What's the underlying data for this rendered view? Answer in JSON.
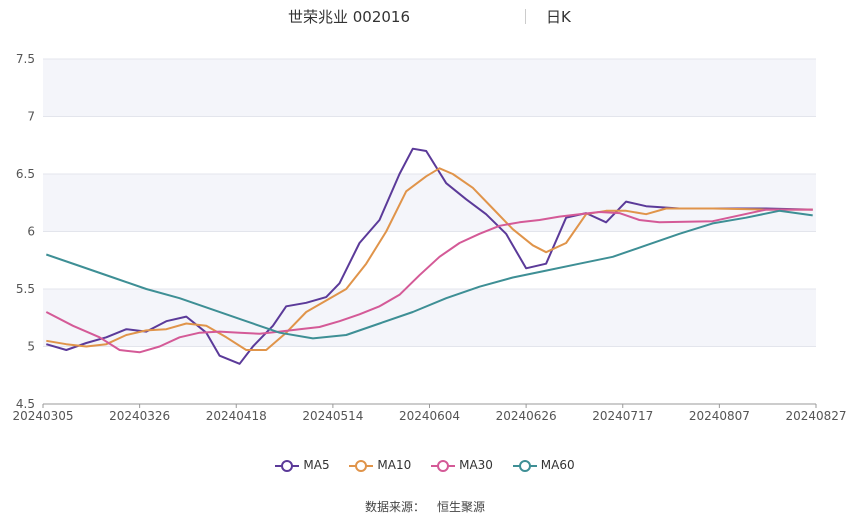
{
  "header": {
    "title": "世荣兆业 002016",
    "period": "日K"
  },
  "source": {
    "label": "数据来源：",
    "value": "恒生聚源"
  },
  "chart_data": {
    "type": "candlestick",
    "title": "世荣兆业 002016",
    "ylim": [
      4.5,
      7.5
    ],
    "yticks": [
      4.5,
      5,
      5.5,
      6,
      6.5,
      7,
      7.5
    ],
    "xticks": [
      "20240305",
      "20240326",
      "20240418",
      "20240514",
      "20240604",
      "20240626",
      "20240717",
      "20240807",
      "20240827"
    ],
    "grid": true,
    "legend_position": "bottom",
    "colors": {
      "up": "#f0636b",
      "down": "#7ee35b",
      "ma5": "#5b3a99",
      "ma10": "#e0944a",
      "ma30": "#d45a97",
      "ma60": "#3e8f95"
    },
    "ma_series": [
      {
        "name": "MA5",
        "color": "#5b3a99",
        "points": [
          [
            0,
            5.02
          ],
          [
            3,
            4.97
          ],
          [
            6,
            5.03
          ],
          [
            9,
            5.08
          ],
          [
            12,
            5.15
          ],
          [
            15,
            5.13
          ],
          [
            18,
            5.22
          ],
          [
            21,
            5.26
          ],
          [
            24,
            5.12
          ],
          [
            26,
            4.92
          ],
          [
            29,
            4.85
          ],
          [
            31,
            5.0
          ],
          [
            34,
            5.18
          ],
          [
            36,
            5.35
          ],
          [
            39,
            5.38
          ],
          [
            42,
            5.43
          ],
          [
            44,
            5.55
          ],
          [
            47,
            5.9
          ],
          [
            50,
            6.1
          ],
          [
            53,
            6.5
          ],
          [
            55,
            6.72
          ],
          [
            57,
            6.7
          ],
          [
            60,
            6.42
          ],
          [
            63,
            6.28
          ],
          [
            66,
            6.15
          ],
          [
            69,
            5.98
          ],
          [
            72,
            5.68
          ],
          [
            75,
            5.72
          ],
          [
            78,
            6.12
          ],
          [
            81,
            6.16
          ],
          [
            84,
            6.08
          ],
          [
            87,
            6.26
          ],
          [
            90,
            6.22
          ],
          [
            95,
            6.2
          ],
          [
            100,
            6.2
          ],
          [
            108,
            6.2
          ],
          [
            115,
            6.19
          ]
        ]
      },
      {
        "name": "MA10",
        "color": "#e0944a",
        "points": [
          [
            0,
            5.05
          ],
          [
            3,
            5.02
          ],
          [
            6,
            5.0
          ],
          [
            9,
            5.02
          ],
          [
            12,
            5.1
          ],
          [
            15,
            5.14
          ],
          [
            18,
            5.15
          ],
          [
            21,
            5.2
          ],
          [
            24,
            5.18
          ],
          [
            27,
            5.08
          ],
          [
            30,
            4.97
          ],
          [
            33,
            4.97
          ],
          [
            36,
            5.12
          ],
          [
            39,
            5.3
          ],
          [
            42,
            5.4
          ],
          [
            45,
            5.5
          ],
          [
            48,
            5.72
          ],
          [
            51,
            6.0
          ],
          [
            54,
            6.35
          ],
          [
            57,
            6.48
          ],
          [
            59,
            6.55
          ],
          [
            61,
            6.5
          ],
          [
            64,
            6.38
          ],
          [
            67,
            6.2
          ],
          [
            70,
            6.02
          ],
          [
            73,
            5.88
          ],
          [
            75,
            5.82
          ],
          [
            78,
            5.9
          ],
          [
            81,
            6.15
          ],
          [
            84,
            6.18
          ],
          [
            87,
            6.18
          ],
          [
            90,
            6.15
          ],
          [
            93,
            6.2
          ],
          [
            100,
            6.2
          ],
          [
            108,
            6.19
          ],
          [
            115,
            6.19
          ]
        ]
      },
      {
        "name": "MA30",
        "color": "#d45a97",
        "points": [
          [
            0,
            5.3
          ],
          [
            4,
            5.18
          ],
          [
            8,
            5.08
          ],
          [
            11,
            4.97
          ],
          [
            14,
            4.95
          ],
          [
            17,
            5.0
          ],
          [
            20,
            5.08
          ],
          [
            23,
            5.12
          ],
          [
            26,
            5.13
          ],
          [
            29,
            5.12
          ],
          [
            32,
            5.11
          ],
          [
            35,
            5.13
          ],
          [
            38,
            5.15
          ],
          [
            41,
            5.17
          ],
          [
            44,
            5.22
          ],
          [
            47,
            5.28
          ],
          [
            50,
            5.35
          ],
          [
            53,
            5.45
          ],
          [
            56,
            5.62
          ],
          [
            59,
            5.78
          ],
          [
            62,
            5.9
          ],
          [
            65,
            5.98
          ],
          [
            68,
            6.05
          ],
          [
            71,
            6.08
          ],
          [
            74,
            6.1
          ],
          [
            77,
            6.13
          ],
          [
            80,
            6.15
          ],
          [
            83,
            6.17
          ],
          [
            86,
            6.16
          ],
          [
            89,
            6.1
          ],
          [
            92,
            6.08
          ],
          [
            100,
            6.09
          ],
          [
            108,
            6.19
          ],
          [
            115,
            6.19
          ]
        ]
      },
      {
        "name": "MA60",
        "color": "#3e8f95",
        "points": [
          [
            0,
            5.8
          ],
          [
            5,
            5.7
          ],
          [
            10,
            5.6
          ],
          [
            15,
            5.5
          ],
          [
            20,
            5.42
          ],
          [
            25,
            5.32
          ],
          [
            30,
            5.22
          ],
          [
            35,
            5.12
          ],
          [
            40,
            5.07
          ],
          [
            45,
            5.1
          ],
          [
            50,
            5.2
          ],
          [
            55,
            5.3
          ],
          [
            60,
            5.42
          ],
          [
            65,
            5.52
          ],
          [
            70,
            5.6
          ],
          [
            75,
            5.66
          ],
          [
            80,
            5.72
          ],
          [
            85,
            5.78
          ],
          [
            90,
            5.88
          ],
          [
            95,
            5.98
          ],
          [
            100,
            6.07
          ],
          [
            105,
            6.12
          ],
          [
            110,
            6.18
          ],
          [
            115,
            6.14
          ]
        ]
      }
    ]
  }
}
